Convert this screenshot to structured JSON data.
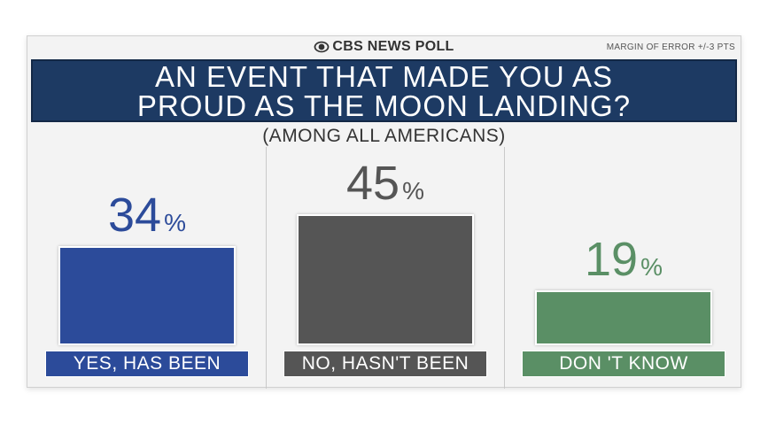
{
  "brand": {
    "name": "CBS NEWS POLL",
    "icon": "cbs-eye-logo"
  },
  "margin_note": "MARGIN OF ERROR +/-3 PTS",
  "colors": {
    "title_bg": "#1d3a63",
    "yes": "#2c4b9a",
    "no": "#555555",
    "dont_know": "#5a8f65"
  },
  "chart_data": {
    "type": "bar",
    "title_lines": [
      "AN EVENT THAT MADE YOU AS",
      "PROUD AS THE MOON LANDING?"
    ],
    "subtitle": "(AMONG ALL AMERICANS)",
    "categories": [
      "YES, HAS BEEN",
      "NO, HASN'T BEEN",
      "DON 'T KNOW"
    ],
    "values": [
      34,
      45,
      19
    ],
    "value_suffix": "%",
    "colors": [
      "#2c4b9a",
      "#555555",
      "#5a8f65"
    ],
    "ylim": [
      0,
      45
    ],
    "grid": false,
    "legend": "none"
  }
}
